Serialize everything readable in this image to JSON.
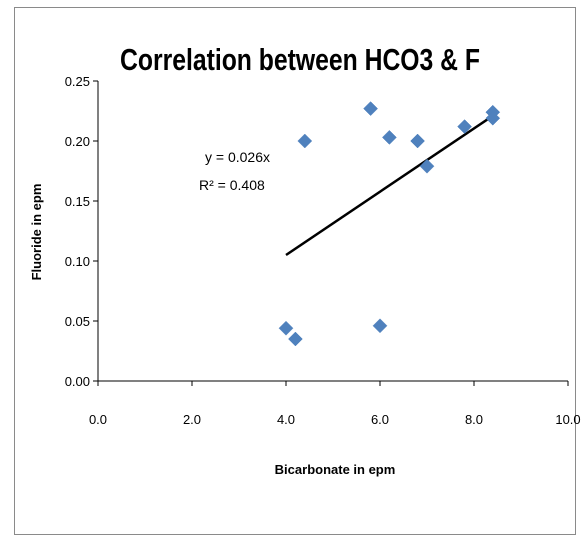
{
  "chart_data": {
    "type": "scatter",
    "title": "Correlation between HCO3 & F",
    "xlabel": "Bicarbonate in epm",
    "ylabel": "Fluoride in epm",
    "xlim": [
      0,
      10
    ],
    "ylim": [
      0,
      0.25
    ],
    "xticks": [
      "0.0",
      "2.0",
      "4.0",
      "6.0",
      "8.0",
      "10.0"
    ],
    "yticks": [
      "0.00",
      "0.05",
      "0.10",
      "0.15",
      "0.20",
      "0.25"
    ],
    "grid": false,
    "legend": "none",
    "marker_color": "#4f81bd",
    "points": [
      {
        "x": 4.0,
        "y": 0.044
      },
      {
        "x": 4.2,
        "y": 0.035
      },
      {
        "x": 4.4,
        "y": 0.2
      },
      {
        "x": 5.8,
        "y": 0.227
      },
      {
        "x": 6.0,
        "y": 0.046
      },
      {
        "x": 6.2,
        "y": 0.203
      },
      {
        "x": 6.8,
        "y": 0.2
      },
      {
        "x": 7.0,
        "y": 0.179
      },
      {
        "x": 7.8,
        "y": 0.212
      },
      {
        "x": 8.4,
        "y": 0.224
      },
      {
        "x": 8.4,
        "y": 0.219
      }
    ],
    "trendline": {
      "x": [
        4.0,
        8.4
      ],
      "y": [
        0.105,
        0.221
      ],
      "equation": "y = 0.026x",
      "r2": "R² = 0.408"
    }
  }
}
